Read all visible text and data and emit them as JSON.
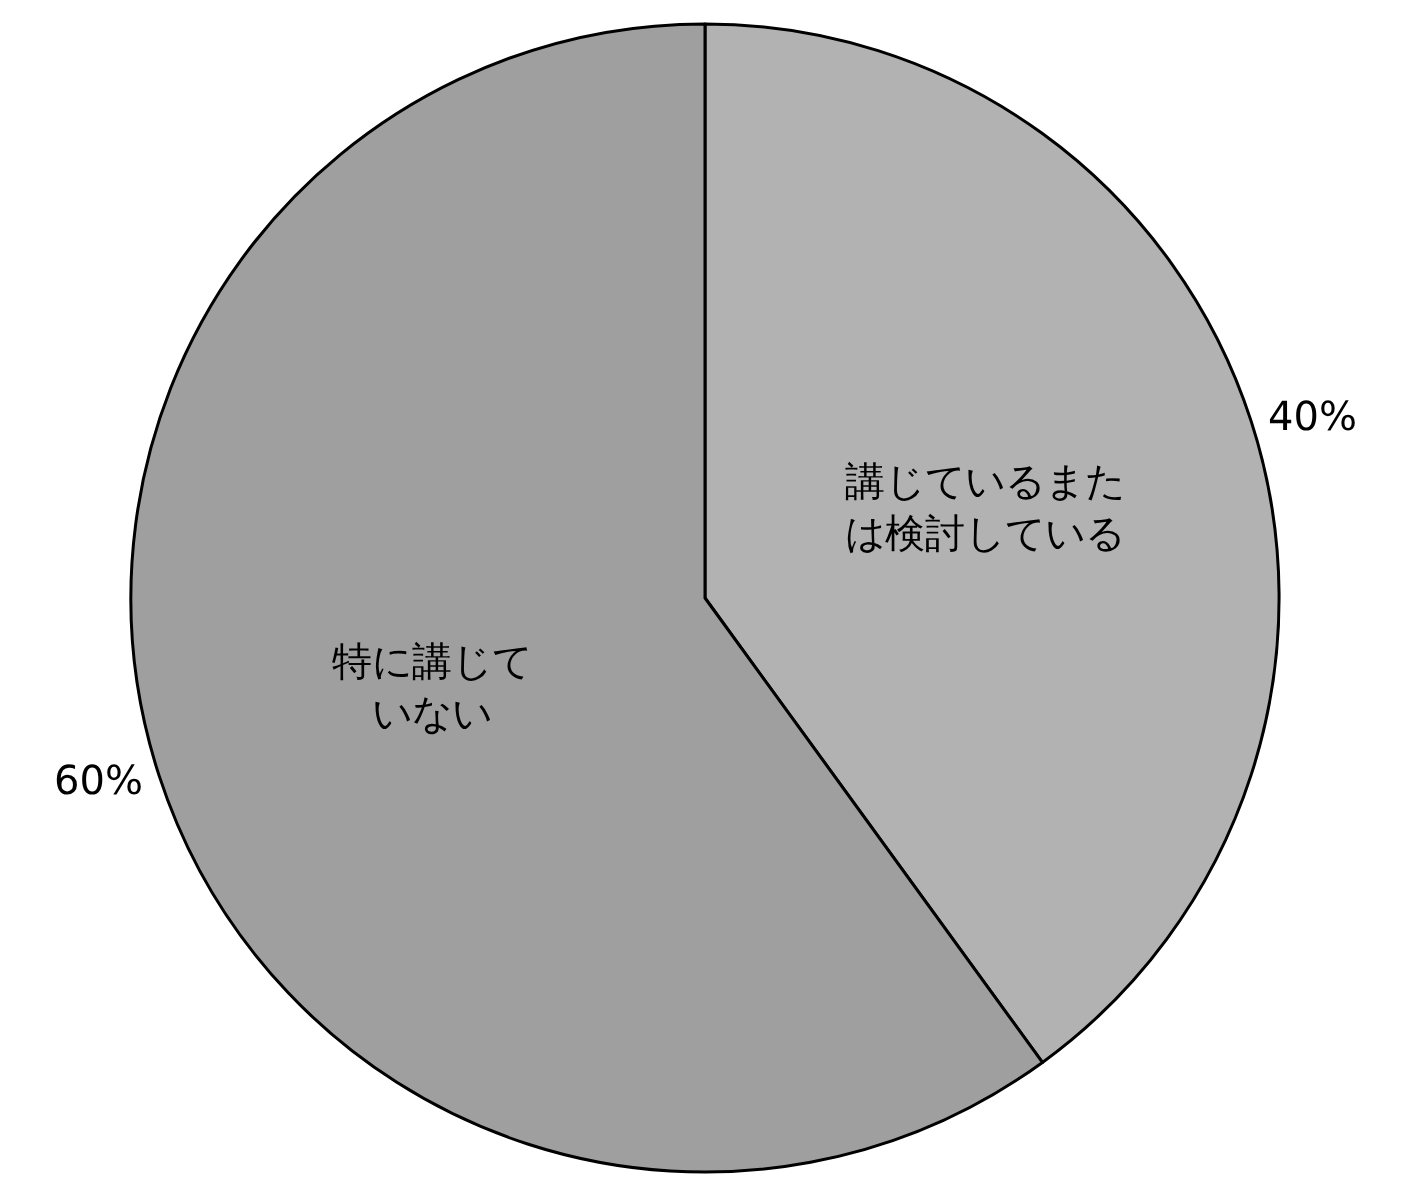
{
  "chart_data": {
    "type": "pie",
    "categories": [
      "講じているまたは検討している",
      "特に講じていない"
    ],
    "values": [
      40,
      60
    ],
    "value_labels": [
      "40%",
      "60%"
    ],
    "colors": [
      "#b2b2b2",
      "#9f9f9f"
    ],
    "legend": false
  }
}
